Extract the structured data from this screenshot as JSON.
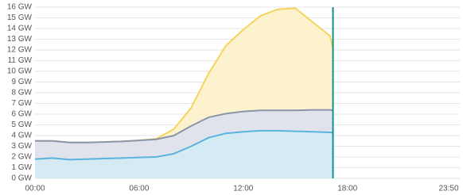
{
  "chart_data": {
    "type": "area",
    "x": [
      "00:00",
      "01:00",
      "02:00",
      "03:00",
      "04:00",
      "05:00",
      "06:00",
      "07:00",
      "08:00",
      "09:00",
      "10:00",
      "11:00",
      "12:00",
      "13:00",
      "14:00",
      "15:00",
      "16:00",
      "17:00",
      "17:10"
    ],
    "series": [
      {
        "color": "#f6d35e",
        "fill": "#fdf1c9",
        "values": [
          3.5,
          3.5,
          3.35,
          3.35,
          3.4,
          3.45,
          3.55,
          3.7,
          4.6,
          6.6,
          9.8,
          12.4,
          13.9,
          15.2,
          15.8,
          15.9,
          14.6,
          13.3,
          12.1
        ]
      },
      {
        "color": "#8a95a8",
        "fill": "#dde1ee",
        "values": [
          3.5,
          3.5,
          3.35,
          3.35,
          3.4,
          3.45,
          3.55,
          3.65,
          4.0,
          4.9,
          5.7,
          6.05,
          6.25,
          6.35,
          6.35,
          6.35,
          6.4,
          6.4,
          6.35
        ]
      },
      {
        "color": "#5ab4dd",
        "fill": "#d4ebf5",
        "values": [
          1.8,
          1.9,
          1.75,
          1.8,
          1.85,
          1.9,
          1.95,
          2.0,
          2.3,
          3.0,
          3.8,
          4.2,
          4.35,
          4.45,
          4.45,
          4.4,
          4.35,
          4.3,
          4.3
        ]
      }
    ],
    "marker_color": "#13908f",
    "xlim": [
      "00:00",
      "23:50"
    ],
    "xticks": [
      "00:00",
      "06:00",
      "12:00",
      "18:00",
      "23:50"
    ],
    "ylim": [
      0,
      16
    ],
    "yticks": [
      {
        "value": 0,
        "label": "0 GW"
      },
      {
        "value": 1,
        "label": "1 GW"
      },
      {
        "value": 2,
        "label": "2 GW"
      },
      {
        "value": 3,
        "label": "3 GW"
      },
      {
        "value": 4,
        "label": "4 GW"
      },
      {
        "value": 5,
        "label": "5 GW"
      },
      {
        "value": 6,
        "label": "6 GW"
      },
      {
        "value": 7,
        "label": "7 GW"
      },
      {
        "value": 8,
        "label": "8 GW"
      },
      {
        "value": 9,
        "label": "9 GW"
      },
      {
        "value": 10,
        "label": "10 GW"
      },
      {
        "value": 11,
        "label": "11 GW"
      },
      {
        "value": 12,
        "label": "12 GW"
      },
      {
        "value": 13,
        "label": "13 GW"
      },
      {
        "value": 14,
        "label": "14 GW"
      },
      {
        "value": 15,
        "label": "15 GW"
      },
      {
        "value": 16,
        "label": "16 GW"
      }
    ],
    "grid": true
  }
}
